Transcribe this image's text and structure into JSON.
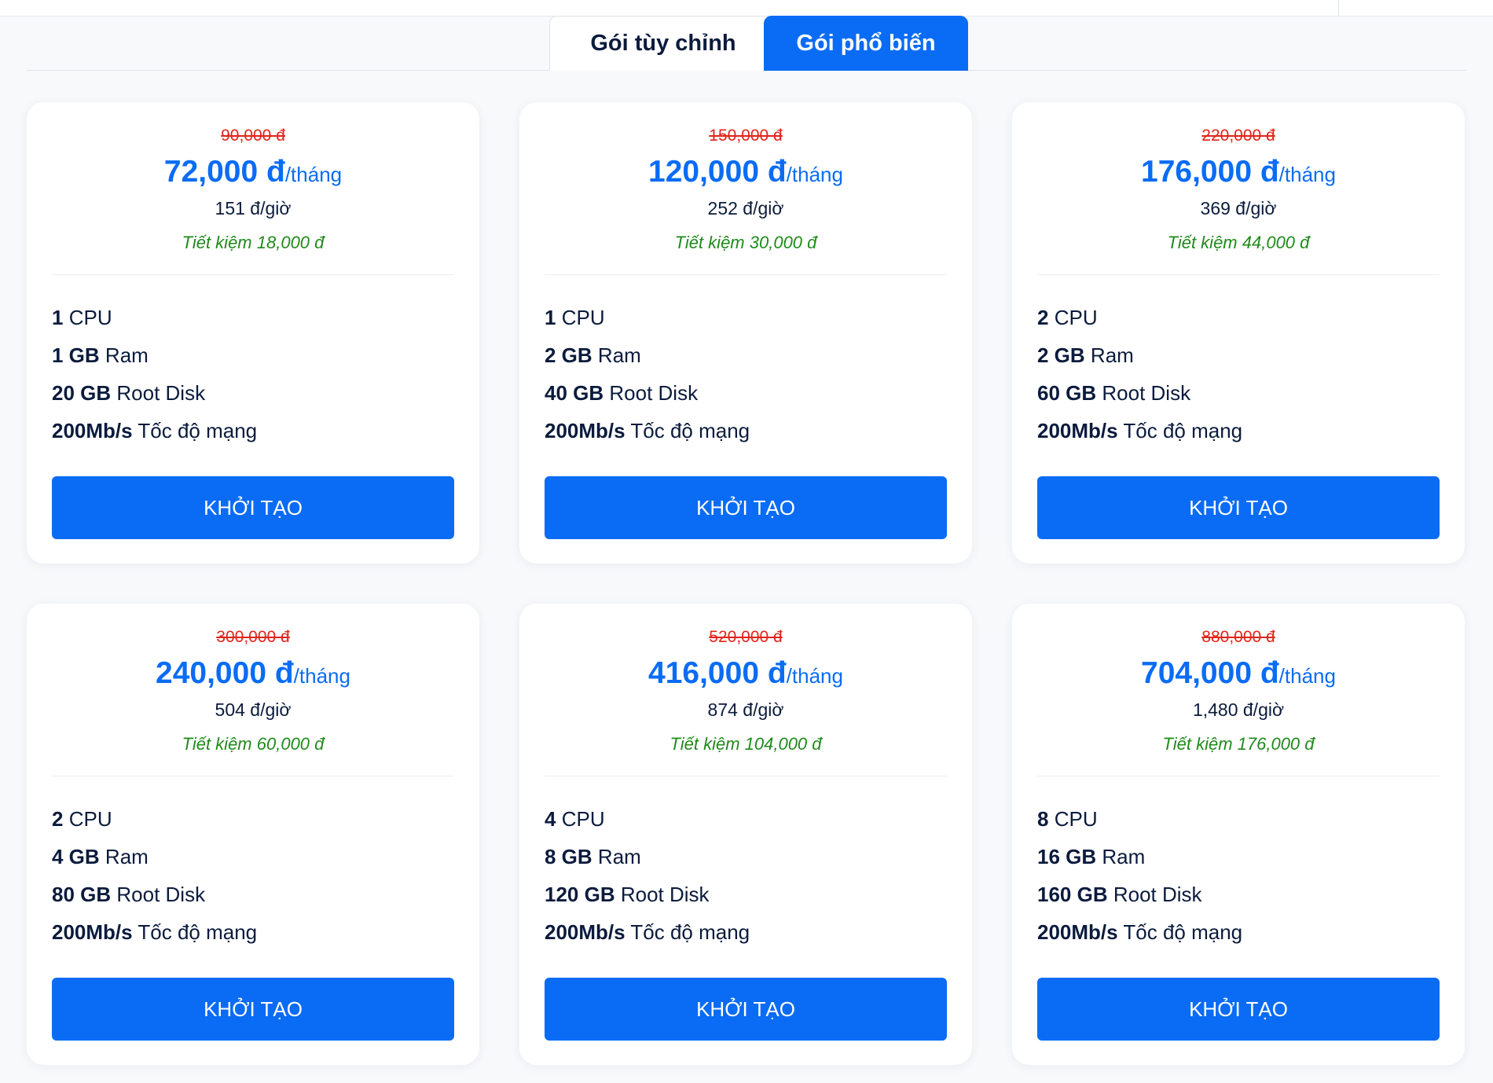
{
  "tabs": [
    {
      "label": "Gói tùy chỉnh",
      "active": false
    },
    {
      "label": "Gói phổ biến",
      "active": true
    }
  ],
  "colors": {
    "accent": "#0a6cf5",
    "old_price": "#e0251b",
    "saving": "#1f8a1a",
    "text": "#0b1b3d"
  },
  "plans": [
    {
      "old_price": "90,000 đ",
      "price": "72,000 đ",
      "period": "/tháng",
      "hourly": "151 đ/giờ",
      "saving": "Tiết kiệm 18,000 đ",
      "specs": [
        {
          "value": "1",
          "label": "CPU"
        },
        {
          "value": "1 GB",
          "label": "Ram"
        },
        {
          "value": "20 GB",
          "label": "Root Disk"
        },
        {
          "value": "200Mb/s",
          "label": "Tốc độ mạng"
        }
      ],
      "button": "KHỞI TẠO"
    },
    {
      "old_price": "150,000 đ",
      "price": "120,000 đ",
      "period": "/tháng",
      "hourly": "252 đ/giờ",
      "saving": "Tiết kiệm 30,000 đ",
      "specs": [
        {
          "value": "1",
          "label": "CPU"
        },
        {
          "value": "2 GB",
          "label": "Ram"
        },
        {
          "value": "40 GB",
          "label": "Root Disk"
        },
        {
          "value": "200Mb/s",
          "label": "Tốc độ mạng"
        }
      ],
      "button": "KHỞI TẠO"
    },
    {
      "old_price": "220,000 đ",
      "price": "176,000 đ",
      "period": "/tháng",
      "hourly": "369 đ/giờ",
      "saving": "Tiết kiệm 44,000 đ",
      "specs": [
        {
          "value": "2",
          "label": "CPU"
        },
        {
          "value": "2 GB",
          "label": "Ram"
        },
        {
          "value": "60 GB",
          "label": "Root Disk"
        },
        {
          "value": "200Mb/s",
          "label": "Tốc độ mạng"
        }
      ],
      "button": "KHỞI TẠO"
    },
    {
      "old_price": "300,000 đ",
      "price": "240,000 đ",
      "period": "/tháng",
      "hourly": "504 đ/giờ",
      "saving": "Tiết kiệm 60,000 đ",
      "specs": [
        {
          "value": "2",
          "label": "CPU"
        },
        {
          "value": "4 GB",
          "label": "Ram"
        },
        {
          "value": "80 GB",
          "label": "Root Disk"
        },
        {
          "value": "200Mb/s",
          "label": "Tốc độ mạng"
        }
      ],
      "button": "KHỞI TẠO"
    },
    {
      "old_price": "520,000 đ",
      "price": "416,000 đ",
      "period": "/tháng",
      "hourly": "874 đ/giờ",
      "saving": "Tiết kiệm 104,000 đ",
      "specs": [
        {
          "value": "4",
          "label": "CPU"
        },
        {
          "value": "8 GB",
          "label": "Ram"
        },
        {
          "value": "120 GB",
          "label": "Root Disk"
        },
        {
          "value": "200Mb/s",
          "label": "Tốc độ mạng"
        }
      ],
      "button": "KHỞI TẠO"
    },
    {
      "old_price": "880,000 đ",
      "price": "704,000 đ",
      "period": "/tháng",
      "hourly": "1,480 đ/giờ",
      "saving": "Tiết kiệm 176,000 đ",
      "specs": [
        {
          "value": "8",
          "label": "CPU"
        },
        {
          "value": "16 GB",
          "label": "Ram"
        },
        {
          "value": "160 GB",
          "label": "Root Disk"
        },
        {
          "value": "200Mb/s",
          "label": "Tốc độ mạng"
        }
      ],
      "button": "KHỞI TẠO"
    }
  ]
}
